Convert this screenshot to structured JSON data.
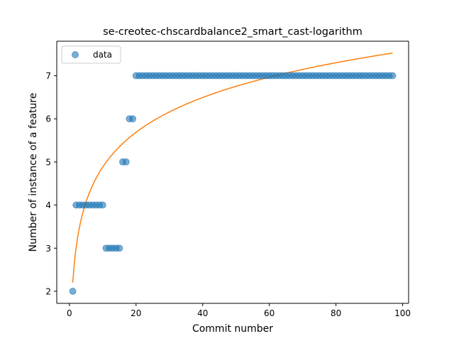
{
  "chart_data": {
    "type": "scatter",
    "title": "se-creotec-chscardbalance2_smart_cast-logarithm",
    "xlabel": "Commit number",
    "ylabel": "Number of instance of a feature",
    "xlim": [
      -3.8,
      101.8
    ],
    "ylim": [
      1.72,
      7.8
    ],
    "xticks": [
      0,
      20,
      40,
      60,
      80,
      100
    ],
    "yticks": [
      2,
      3,
      4,
      5,
      6,
      7
    ],
    "grid": false,
    "legend_position": "upper-left",
    "series": [
      {
        "name": "data",
        "kind": "scatter",
        "x": [
          1,
          2,
          3,
          4,
          5,
          6,
          7,
          8,
          9,
          10,
          11,
          12,
          13,
          14,
          15,
          16,
          17,
          18,
          19,
          20,
          21,
          22,
          23,
          24,
          25,
          26,
          27,
          28,
          29,
          30,
          31,
          32,
          33,
          34,
          35,
          36,
          37,
          38,
          39,
          40,
          41,
          42,
          43,
          44,
          45,
          46,
          47,
          48,
          49,
          50,
          51,
          52,
          53,
          54,
          55,
          56,
          57,
          58,
          59,
          60,
          61,
          62,
          63,
          64,
          65,
          66,
          67,
          68,
          69,
          70,
          71,
          72,
          73,
          74,
          75,
          76,
          77,
          78,
          79,
          80,
          81,
          82,
          83,
          84,
          85,
          86,
          87,
          88,
          89,
          90,
          91,
          92,
          93,
          94,
          95,
          96,
          97
        ],
        "y": [
          2,
          4,
          4,
          4,
          4,
          4,
          4,
          4,
          4,
          4,
          3,
          3,
          3,
          3,
          3,
          5,
          5,
          6,
          6,
          7,
          7,
          7,
          7,
          7,
          7,
          7,
          7,
          7,
          7,
          7,
          7,
          7,
          7,
          7,
          7,
          7,
          7,
          7,
          7,
          7,
          7,
          7,
          7,
          7,
          7,
          7,
          7,
          7,
          7,
          7,
          7,
          7,
          7,
          7,
          7,
          7,
          7,
          7,
          7,
          7,
          7,
          7,
          7,
          7,
          7,
          7,
          7,
          7,
          7,
          7,
          7,
          7,
          7,
          7,
          7,
          7,
          7,
          7,
          7,
          7,
          7,
          7,
          7,
          7,
          7,
          7,
          7,
          7,
          7,
          7,
          7,
          7,
          7,
          7,
          7,
          7,
          7
        ],
        "color": "#1f77b4",
        "alpha": 0.6
      },
      {
        "kind": "fit-line",
        "function": "a + b*ln(x)",
        "a": 2.2,
        "b": 1.164,
        "x_range": [
          1,
          97
        ],
        "color": "#ff7f0e"
      }
    ]
  }
}
